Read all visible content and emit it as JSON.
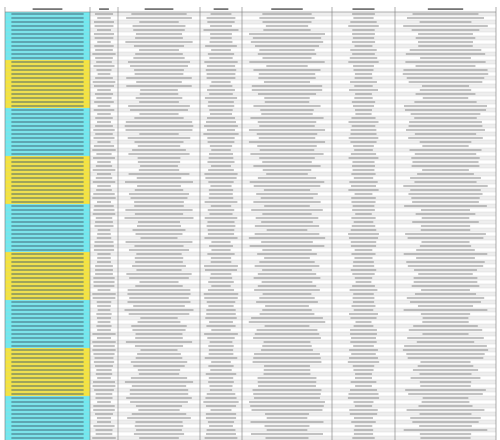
{
  "table": {
    "row_groups": [
      {
        "color": "#6fe9f0"
      },
      {
        "color": "#f6e43c"
      },
      {
        "color": "#6fe9f0"
      },
      {
        "color": "#f6e43c"
      },
      {
        "color": "#6fe9f0"
      },
      {
        "color": "#f6e43c"
      },
      {
        "color": "#6fe9f0"
      },
      {
        "color": "#f6e43c"
      },
      {
        "color": "#6fe9f0"
      }
    ]
  }
}
